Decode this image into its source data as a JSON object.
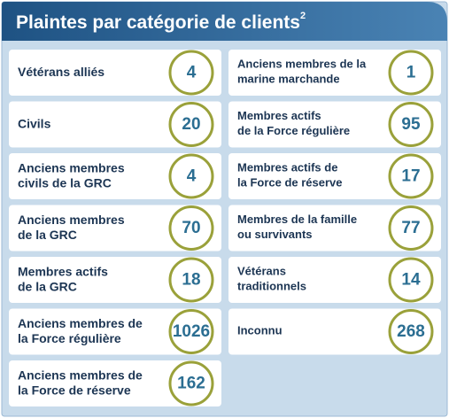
{
  "header": {
    "title": "Plaintes par catégorie de clients",
    "footnote": "2"
  },
  "columns": [
    {
      "items": [
        {
          "label": [
            "Vétérans alliés"
          ],
          "value": 4
        },
        {
          "label": [
            "Civils"
          ],
          "value": 20
        },
        {
          "label": [
            "Anciens membres",
            "civils de la GRC"
          ],
          "value": 4
        },
        {
          "label": [
            "Anciens membres",
            "de la GRC"
          ],
          "value": 70
        },
        {
          "label": [
            "Membres actifs",
            "de la GRC"
          ],
          "value": 18
        },
        {
          "label": [
            "Anciens membres de",
            "la Force régulière"
          ],
          "value": 1026
        },
        {
          "label": [
            "Anciens membres de",
            "la Force de réserve"
          ],
          "value": 162
        }
      ]
    },
    {
      "items": [
        {
          "label": [
            "Anciens membres de la",
            "marine marchande"
          ],
          "value": 1
        },
        {
          "label": [
            "Membres actifs",
            "de la Force régulière"
          ],
          "value": 95
        },
        {
          "label": [
            "Membres actifs de",
            "la Force de réserve"
          ],
          "value": 17
        },
        {
          "label": [
            "Membres de la famille",
            "ou survivants"
          ],
          "value": 77
        },
        {
          "label": [
            "Vétérans",
            "traditionnels"
          ],
          "value": 14
        },
        {
          "label": [
            "Inconnu"
          ],
          "value": 268
        }
      ]
    }
  ]
}
